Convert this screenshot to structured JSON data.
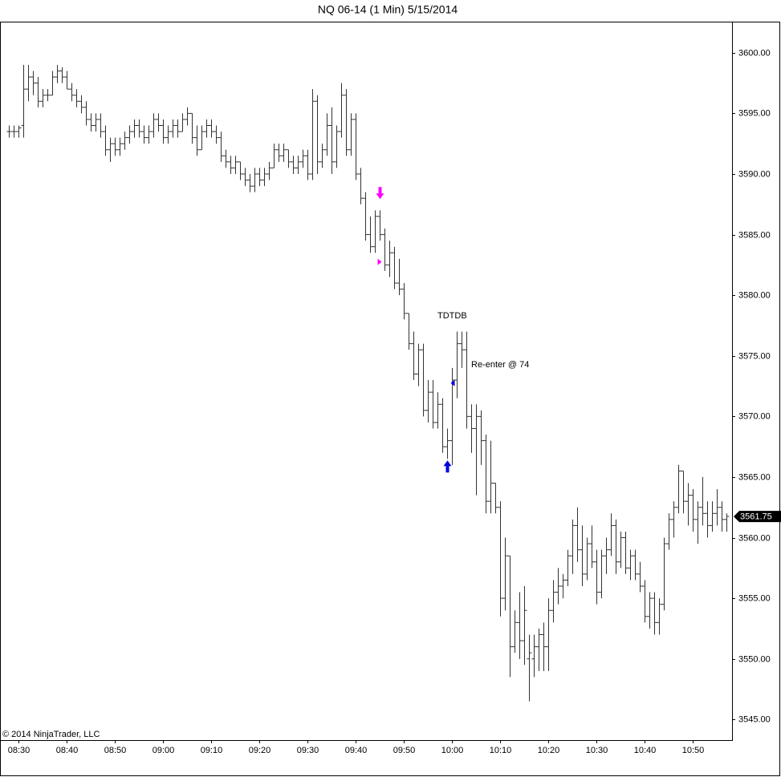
{
  "chart_data": {
    "type": "ohlc",
    "title": "NQ 06-14 (1 Min)  5/15/2014",
    "copyright": "© 2014 NinjaTrader, LLC",
    "annotations": [
      "TDTDB",
      "Re-enter @ 74"
    ],
    "color": "#333333",
    "x": [
      null,
      null,
      "08:30",
      null,
      null,
      null,
      null,
      null,
      null,
      null,
      null,
      null,
      "08:40",
      null,
      null,
      null,
      null,
      null,
      null,
      null,
      null,
      null,
      "08:50",
      null,
      null,
      null,
      null,
      null,
      null,
      null,
      null,
      null,
      "09:00",
      null,
      null,
      null,
      null,
      null,
      null,
      null,
      null,
      null,
      "09:10",
      null,
      null,
      null,
      null,
      null,
      null,
      null,
      null,
      null,
      "09:20",
      null,
      null,
      null,
      null,
      null,
      null,
      null,
      null,
      null,
      "09:30",
      null,
      null,
      null,
      null,
      null,
      null,
      null,
      null,
      null,
      "09:40",
      null,
      null,
      null,
      null,
      null,
      null,
      null,
      null,
      null,
      "09:50",
      null,
      null,
      null,
      null,
      null,
      null,
      null,
      null,
      null,
      "10:00",
      null,
      null,
      null,
      null,
      null,
      null,
      null,
      null,
      null,
      "10:10",
      null,
      null,
      null,
      null,
      null,
      null,
      null,
      null,
      null,
      "10:20",
      null,
      null,
      null,
      null,
      null,
      null,
      null,
      null,
      null,
      "10:30",
      null,
      null,
      null,
      null,
      null,
      null,
      null,
      null,
      null,
      "10:40",
      null,
      null,
      null,
      null,
      null,
      null,
      null,
      null,
      null,
      "10:50",
      null,
      null,
      null,
      null,
      null,
      null,
      null
    ],
    "values": [
      [
        3593.5,
        3594,
        3593,
        3593.5
      ],
      [
        3593.5,
        3594,
        3593,
        3593.5
      ],
      [
        3593.5,
        3594,
        3593,
        3593.8
      ],
      [
        3594,
        3599,
        3593,
        3597
      ],
      [
        3597,
        3599,
        3596,
        3598
      ],
      [
        3598,
        3598.5,
        3596.5,
        3597.5
      ],
      [
        3597.5,
        3598,
        3595.5,
        3596
      ],
      [
        3596,
        3597,
        3595.5,
        3596.5
      ],
      [
        3596.5,
        3597,
        3596,
        3596.5
      ],
      [
        3596.5,
        3598.5,
        3596.5,
        3598
      ],
      [
        3598,
        3599,
        3597.5,
        3598.5
      ],
      [
        3598.5,
        3598.8,
        3597.5,
        3598
      ],
      [
        3598,
        3598.5,
        3597,
        3597
      ],
      [
        3597,
        3597.5,
        3596,
        3596.5
      ],
      [
        3596.5,
        3597,
        3595.5,
        3596
      ],
      [
        3596,
        3596.5,
        3595,
        3595.5
      ],
      [
        3595.5,
        3596,
        3594,
        3594.5
      ],
      [
        3594.5,
        3595,
        3593.5,
        3594
      ],
      [
        3594,
        3595,
        3593.5,
        3594.5
      ],
      [
        3594.5,
        3595,
        3593,
        3593.5
      ],
      [
        3593.5,
        3594,
        3591.5,
        3592
      ],
      [
        3592,
        3593,
        3591,
        3592.5
      ],
      [
        3592.5,
        3593,
        3591.5,
        3592
      ],
      [
        3592,
        3593,
        3591.5,
        3592.5
      ],
      [
        3592.5,
        3593.5,
        3592,
        3593
      ],
      [
        3593,
        3594,
        3592.5,
        3593.5
      ],
      [
        3593.5,
        3594.5,
        3593,
        3594
      ],
      [
        3594,
        3594.5,
        3593,
        3593.5
      ],
      [
        3593.5,
        3594,
        3592.5,
        3593
      ],
      [
        3593,
        3594,
        3592.5,
        3593.5
      ],
      [
        3593.5,
        3595,
        3593,
        3594.5
      ],
      [
        3594.5,
        3595,
        3593.5,
        3594
      ],
      [
        3594,
        3594.5,
        3592.5,
        3593
      ],
      [
        3593,
        3594,
        3592.5,
        3593.5
      ],
      [
        3593.5,
        3594.5,
        3593,
        3594
      ],
      [
        3594,
        3594.5,
        3593,
        3593.5
      ],
      [
        3593.5,
        3595,
        3593.5,
        3594.5
      ],
      [
        3594.5,
        3595.5,
        3594,
        3595
      ],
      [
        3595,
        3595,
        3592.5,
        3593
      ],
      [
        3593,
        3594,
        3591.5,
        3592
      ],
      [
        3592,
        3594,
        3592,
        3593.5
      ],
      [
        3593.5,
        3594.5,
        3593,
        3594
      ],
      [
        3594,
        3594.5,
        3593,
        3593.5
      ],
      [
        3593.5,
        3594,
        3592.5,
        3593
      ],
      [
        3593,
        3593.5,
        3591,
        3591.5
      ],
      [
        3591.5,
        3592,
        3590.5,
        3591
      ],
      [
        3591,
        3591.5,
        3590,
        3590.5
      ],
      [
        3590.5,
        3591.5,
        3590,
        3591
      ],
      [
        3591,
        3591,
        3589.5,
        3590
      ],
      [
        3590,
        3590.5,
        3589,
        3589.5
      ],
      [
        3589.5,
        3590,
        3588.5,
        3589
      ],
      [
        3589,
        3590.5,
        3588.5,
        3590
      ],
      [
        3590,
        3590.5,
        3589,
        3589.5
      ],
      [
        3589.5,
        3590.5,
        3589,
        3590
      ],
      [
        3590,
        3591,
        3589.5,
        3590.5
      ],
      [
        3590.5,
        3592.5,
        3590.5,
        3592
      ],
      [
        3592,
        3592.5,
        3591,
        3591.5
      ],
      [
        3591.5,
        3592.5,
        3591,
        3592
      ],
      [
        3592,
        3592,
        3590.5,
        3591
      ],
      [
        3591,
        3591.5,
        3590,
        3590.5
      ],
      [
        3590.5,
        3591.5,
        3590,
        3591
      ],
      [
        3591,
        3592,
        3590.5,
        3591.5
      ],
      [
        3591.5,
        3592,
        3589.5,
        3590
      ],
      [
        3590,
        3597,
        3589.5,
        3596
      ],
      [
        3596,
        3596.5,
        3590,
        3591
      ],
      [
        3591,
        3592.5,
        3590.5,
        3592
      ],
      [
        3592,
        3595,
        3591.5,
        3594
      ],
      [
        3594,
        3595.5,
        3590,
        3591
      ],
      [
        3591,
        3594,
        3590.5,
        3593.5
      ],
      [
        3593.5,
        3597.5,
        3593,
        3596.5
      ],
      [
        3596.5,
        3597,
        3591.5,
        3592
      ],
      [
        3592,
        3595,
        3591.5,
        3594.5
      ],
      [
        3594.5,
        3595,
        3589.5,
        3590
      ],
      [
        3590,
        3590.5,
        3587.5,
        3588
      ],
      [
        3588,
        3588.5,
        3584.5,
        3585
      ],
      [
        3585,
        3586.5,
        3583.5,
        3584
      ],
      [
        3584,
        3587,
        3583.5,
        3586.5
      ],
      [
        3586.5,
        3587,
        3584.5,
        3585
      ],
      [
        3585,
        3585.5,
        3582,
        3582.5
      ],
      [
        3582.5,
        3584.5,
        3581.5,
        3583.5
      ],
      [
        3583.5,
        3584,
        3580.5,
        3581
      ],
      [
        3581,
        3583,
        3580,
        3580.5
      ],
      [
        3580.5,
        3581,
        3578,
        3578.5
      ],
      [
        3578.5,
        3578.5,
        3575.5,
        3576
      ],
      [
        3576,
        3577,
        3573,
        3573.5
      ],
      [
        3573.5,
        3576,
        3572.5,
        3575.5
      ],
      [
        3575.5,
        3576,
        3570,
        3570.5
      ],
      [
        3570.5,
        3573,
        3569.5,
        3572
      ],
      [
        3572,
        3573,
        3569,
        3569.5
      ],
      [
        3569.5,
        3572,
        3569,
        3571
      ],
      [
        3571,
        3571.5,
        3567,
        3567.5
      ],
      [
        3567.5,
        3569,
        3566.5,
        3568
      ],
      [
        3568,
        3574,
        3566,
        3573
      ],
      [
        3573,
        3577,
        3571.5,
        3576
      ],
      [
        3576,
        3577,
        3574,
        3575.5
      ],
      [
        3575.5,
        3577,
        3569,
        3570
      ],
      [
        3570,
        3571,
        3567,
        3569
      ],
      [
        3569,
        3571,
        3563.5,
        3570
      ],
      [
        3570,
        3570.5,
        3566,
        3568
      ],
      [
        3568,
        3568.5,
        3562,
        3563
      ],
      [
        3563,
        3568,
        3562,
        3564.5
      ],
      [
        3564.5,
        3564.5,
        3562,
        3562.5
      ],
      [
        3562.5,
        3563,
        3553.5,
        3555
      ],
      [
        3555,
        3560,
        3554,
        3558.5
      ],
      [
        3558.5,
        3558.5,
        3548.5,
        3551
      ],
      [
        3551,
        3554,
        3550.5,
        3553
      ],
      [
        3553,
        3555.5,
        3550,
        3551.5
      ],
      [
        3551.5,
        3556,
        3549.5,
        3554
      ],
      [
        3550,
        3552,
        3546.5,
        3550.5
      ],
      [
        3550,
        3552,
        3548.5,
        3551
      ],
      [
        3551,
        3552.5,
        3549,
        3552
      ],
      [
        3552,
        3553,
        3549,
        3551
      ],
      [
        3551,
        3555,
        3549,
        3554
      ],
      [
        3554,
        3556.5,
        3553,
        3555.5
      ],
      [
        3555.5,
        3557.5,
        3554.5,
        3556
      ],
      [
        3556,
        3557,
        3555,
        3556.5
      ],
      [
        3556.5,
        3559,
        3556,
        3558.5
      ],
      [
        3558.5,
        3561.5,
        3557,
        3561
      ],
      [
        3561,
        3562.5,
        3558,
        3559
      ],
      [
        3559,
        3561,
        3556,
        3557
      ],
      [
        3557,
        3560,
        3556.5,
        3559.5
      ],
      [
        3559.5,
        3561,
        3557.5,
        3558
      ],
      [
        3558,
        3559,
        3554.5,
        3555.5
      ],
      [
        3555.5,
        3559,
        3555,
        3558.5
      ],
      [
        3558.5,
        3560,
        3557,
        3559
      ],
      [
        3559,
        3562,
        3558.5,
        3561
      ],
      [
        3561,
        3561.5,
        3557,
        3558
      ],
      [
        3558,
        3560.5,
        3557.5,
        3560
      ],
      [
        3560,
        3560.5,
        3557,
        3557.5
      ],
      [
        3557.5,
        3559,
        3556.5,
        3558.5
      ],
      [
        3558.5,
        3559,
        3556.5,
        3557
      ],
      [
        3557,
        3558,
        3555.5,
        3556
      ],
      [
        3556,
        3556.5,
        3553,
        3553.5
      ],
      [
        3553.5,
        3555.5,
        3552.5,
        3555
      ],
      [
        3555,
        3555.5,
        3552,
        3553
      ],
      [
        3553,
        3555,
        3552,
        3554.5
      ],
      [
        3554.5,
        3560,
        3554,
        3559.5
      ],
      [
        3559.5,
        3562,
        3559,
        3561.5
      ],
      [
        3561.5,
        3563,
        3560,
        3562.5
      ],
      [
        3562.5,
        3566,
        3562,
        3565.5
      ],
      [
        3565.5,
        3565.5,
        3562,
        3563
      ],
      [
        3563,
        3564.5,
        3561,
        3563.5
      ],
      [
        3563.5,
        3564,
        3560.5,
        3561.5
      ],
      [
        3561.5,
        3563,
        3559.5,
        3562.5
      ],
      [
        3562.5,
        3565,
        3561,
        3562
      ],
      [
        3562,
        3563,
        3560,
        3561
      ],
      [
        3561,
        3563,
        3560.5,
        3562
      ],
      [
        3562,
        3564,
        3561,
        3562.5
      ],
      [
        3562.5,
        3563,
        3560.5,
        3561.5
      ],
      [
        3561.5,
        3562,
        3560.5,
        3561.75
      ]
    ],
    "signals": [
      {
        "index": 77,
        "price": 3588,
        "shape": "arrow-down",
        "color": "#ff00ff"
      },
      {
        "index": 77,
        "price": 3582.75,
        "shape": "triangle-right",
        "color": "#ff00ff"
      },
      {
        "index": 91,
        "price": 3566.3,
        "shape": "arrow-up",
        "color": "#0000dd"
      },
      {
        "index": 92,
        "price": 3572.75,
        "shape": "triangle-left",
        "color": "#0000dd"
      }
    ],
    "ylim": [
      3543.3,
      3602.5
    ],
    "yticks": [
      {
        "value": 3545,
        "label": "3545.00"
      },
      {
        "value": 3550,
        "label": "3550.00"
      },
      {
        "value": 3555,
        "label": "3555.00"
      },
      {
        "value": 3560,
        "label": "3560.00"
      },
      {
        "value": 3565,
        "label": "3565.00"
      },
      {
        "value": 3570,
        "label": "3570.00"
      },
      {
        "value": 3575,
        "label": "3575.00"
      },
      {
        "value": 3580,
        "label": "3580.00"
      },
      {
        "value": 3585,
        "label": "3585.00"
      },
      {
        "value": 3590,
        "label": "3590.00"
      },
      {
        "value": 3595,
        "label": "3595.00"
      },
      {
        "value": 3600,
        "label": "3600.00"
      }
    ],
    "grid": false
  }
}
